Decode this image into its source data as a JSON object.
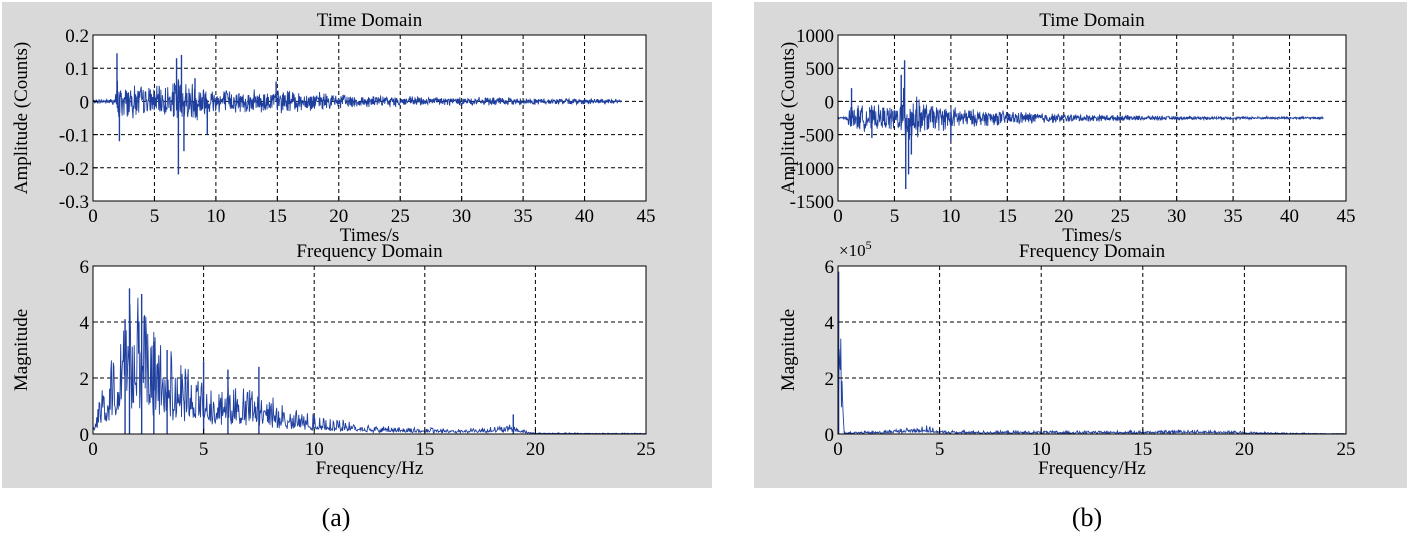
{
  "panels": [
    {
      "caption": "(a)",
      "charts": [
        {
          "type": "line",
          "title": "Time Domain",
          "xlabel": "Times/s",
          "ylabel": "Amplitude (Counts)",
          "xlim": [
            0,
            45
          ],
          "ylim": [
            -0.3,
            0.2
          ],
          "xticks": [
            0,
            5,
            10,
            15,
            20,
            25,
            30,
            35,
            40,
            45
          ],
          "yticks": [
            -0.3,
            -0.2,
            -0.1,
            0,
            0.1,
            0.2
          ],
          "ytick_labels": [
            "-0.3",
            "-0.2",
            "-0.1",
            "0",
            "0.1",
            "0.2"
          ],
          "grid": true,
          "series_color": "#1f3f9f",
          "envelope": {
            "x": [
              0,
              1.8,
              2.0,
              2.3,
              3,
              5,
              6.5,
              6.9,
              7.0,
              7.3,
              8,
              10,
              12,
              15,
              20,
              25,
              30,
              35,
              40,
              43
            ],
            "amp": [
              0.005,
              0.01,
              0.07,
              0.05,
              0.05,
              0.04,
              0.05,
              0.1,
              0.07,
              0.06,
              0.06,
              0.04,
              0.03,
              0.035,
              0.02,
              0.015,
              0.012,
              0.01,
              0.008,
              0.006
            ]
          },
          "spikes": [
            {
              "x": 1.95,
              "y": 0.145
            },
            {
              "x": 2.15,
              "y": -0.12
            },
            {
              "x": 6.8,
              "y": 0.13
            },
            {
              "x": 6.95,
              "y": -0.22
            },
            {
              "x": 7.2,
              "y": 0.14
            },
            {
              "x": 7.4,
              "y": -0.15
            },
            {
              "x": 8.3,
              "y": 0.07
            },
            {
              "x": 9.3,
              "y": -0.1
            },
            {
              "x": 14.9,
              "y": 0.06
            }
          ]
        },
        {
          "type": "line",
          "title": "Frequency Domain",
          "xlabel": "Frequency/Hz",
          "ylabel": "Magnitude",
          "xlim": [
            0,
            25
          ],
          "ylim": [
            0,
            6
          ],
          "xticks": [
            0,
            5,
            10,
            15,
            20,
            25
          ],
          "yticks": [
            0,
            2,
            4,
            6
          ],
          "ytick_labels": [
            "0",
            "2",
            "4",
            "6"
          ],
          "grid": true,
          "series_color": "#1f3f9f",
          "envelope": {
            "x": [
              0,
              0.3,
              0.6,
              1.0,
              1.5,
              2.0,
              2.5,
              3.0,
              4.0,
              5.0,
              6.0,
              7.0,
              8.0,
              9.0,
              10.0,
              11.0,
              12.0,
              13.0,
              15.0,
              17.0,
              19.0,
              19.5,
              20.0,
              25.0
            ],
            "amp": [
              0.2,
              1.1,
              1.0,
              2.2,
              3.4,
              3.5,
              2.6,
              2.2,
              1.6,
              1.3,
              1.2,
              1.1,
              0.9,
              0.6,
              0.45,
              0.35,
              0.25,
              0.2,
              0.14,
              0.14,
              0.22,
              0.1,
              0.03,
              0.02
            ]
          },
          "spikes": [
            {
              "x": 1.65,
              "y": 5.2
            },
            {
              "x": 2.2,
              "y": 5.0
            },
            {
              "x": 1.45,
              "y": 4.1
            },
            {
              "x": 2.75,
              "y": 3.3
            },
            {
              "x": 3.35,
              "y": 3.0
            },
            {
              "x": 5.0,
              "y": 2.6
            },
            {
              "x": 6.1,
              "y": 2.3
            },
            {
              "x": 7.5,
              "y": 2.4
            },
            {
              "x": 19.0,
              "y": 0.7
            }
          ]
        }
      ]
    },
    {
      "caption": "(b)",
      "charts": [
        {
          "type": "line",
          "title": "Time Domain",
          "xlabel": "Times/s",
          "ylabel": "Amplitude (Counts)",
          "xlim": [
            0,
            45
          ],
          "ylim": [
            -1500,
            1000
          ],
          "xticks": [
            0,
            5,
            10,
            15,
            20,
            25,
            30,
            35,
            40,
            45
          ],
          "yticks": [
            -1500,
            -1000,
            -500,
            0,
            500,
            1000
          ],
          "ytick_labels": [
            "-1500",
            "-1000",
            "-500",
            "0",
            "500",
            "1000"
          ],
          "grid": true,
          "baseline": -250,
          "series_color": "#1f3f9f",
          "envelope": {
            "x": [
              0,
              0.8,
              1.0,
              2.0,
              4.0,
              5.3,
              6.0,
              6.8,
              8.0,
              10.0,
              12.0,
              15.0,
              20.0,
              25.0,
              30.0,
              35.0,
              40.0,
              43.0
            ],
            "amp": [
              10,
              20,
              200,
              180,
              170,
              180,
              500,
              300,
              200,
              160,
              120,
              100,
              60,
              40,
              25,
              20,
              18,
              15
            ]
          },
          "spikes": [
            {
              "x": 5.9,
              "y": 620
            },
            {
              "x": 6.0,
              "y": -1320
            },
            {
              "x": 6.25,
              "y": -1100
            },
            {
              "x": 5.6,
              "y": 400
            },
            {
              "x": 6.5,
              "y": -800
            },
            {
              "x": 1.2,
              "y": 200
            },
            {
              "x": 10.0,
              "y": -600
            },
            {
              "x": 3.0,
              "y": -550
            }
          ]
        },
        {
          "type": "line",
          "title": "Frequency Domain",
          "xlabel": "Frequency/Hz",
          "ylabel": "Magnitude",
          "multiplier": "×10",
          "multiplier_exp": "5",
          "xlim": [
            0,
            25
          ],
          "ylim": [
            0,
            6
          ],
          "xticks": [
            0,
            5,
            10,
            15,
            20,
            25
          ],
          "yticks": [
            0,
            2,
            4,
            6
          ],
          "ytick_labels": [
            "0",
            "2",
            "4",
            "6"
          ],
          "grid": true,
          "series_color": "#1f3f9f",
          "envelope": {
            "x": [
              0,
              0.05,
              0.3,
              2.0,
              3.5,
              4.2,
              5.0,
              8.0,
              12.0,
              16.0,
              17.0,
              20.0,
              22.0,
              25.0
            ],
            "amp": [
              0.0,
              5.8,
              0.05,
              0.07,
              0.15,
              0.22,
              0.08,
              0.07,
              0.07,
              0.08,
              0.11,
              0.06,
              0.03,
              0.01
            ]
          },
          "spikes": [
            {
              "x": 0.03,
              "y": 5.8
            }
          ]
        }
      ]
    }
  ]
}
